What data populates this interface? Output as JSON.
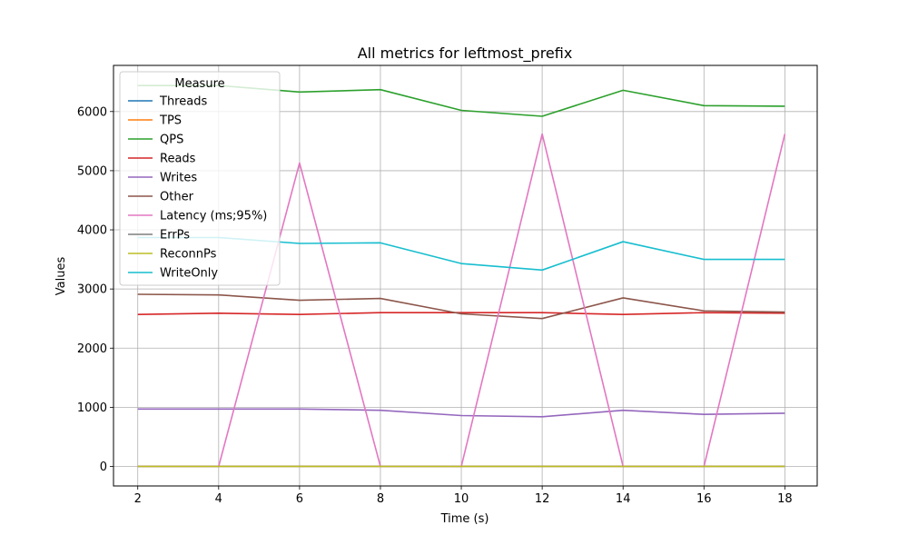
{
  "chart_data": {
    "type": "line",
    "title": "All metrics for leftmost_prefix",
    "xlabel": "Time (s)",
    "ylabel": "Values",
    "x": [
      2,
      4,
      6,
      8,
      10,
      12,
      14,
      16,
      18
    ],
    "xlim": [
      1.4,
      18.8
    ],
    "ylim": [
      -330,
      6780
    ],
    "xticks": [
      2,
      4,
      6,
      8,
      10,
      12,
      14,
      16,
      18
    ],
    "yticks": [
      0,
      1000,
      2000,
      3000,
      4000,
      5000,
      6000
    ],
    "grid": true,
    "legend": {
      "title": "Measure",
      "placement": "upper-left"
    },
    "series": [
      {
        "name": "Threads",
        "color": "#1f77b4",
        "values": [
          4,
          4,
          4,
          4,
          4,
          4,
          4,
          4,
          4
        ]
      },
      {
        "name": "TPS",
        "color": "#ff7f0e",
        "values": [
          2,
          2,
          2,
          2,
          2,
          2,
          2,
          2,
          2
        ]
      },
      {
        "name": "QPS",
        "color": "#2ca02c",
        "values": [
          6440,
          6440,
          6330,
          6370,
          6020,
          5920,
          6360,
          6100,
          6090
        ]
      },
      {
        "name": "Reads",
        "color": "#d62728",
        "values": [
          2570,
          2590,
          2570,
          2600,
          2600,
          2600,
          2570,
          2600,
          2590
        ]
      },
      {
        "name": "Writes",
        "color": "#9467bd",
        "values": [
          970,
          970,
          970,
          950,
          860,
          840,
          950,
          880,
          900
        ]
      },
      {
        "name": "Other",
        "color": "#8c564b",
        "values": [
          2910,
          2900,
          2810,
          2840,
          2580,
          2500,
          2850,
          2630,
          2610
        ]
      },
      {
        "name": "Latency (ms;95%)",
        "color": "#e377c2",
        "values": [
          0,
          0,
          5130,
          0,
          0,
          5620,
          0,
          0,
          5620
        ]
      },
      {
        "name": "ErrPs",
        "color": "#7f7f7f",
        "values": [
          0,
          0,
          0,
          0,
          0,
          0,
          0,
          0,
          0
        ]
      },
      {
        "name": "ReconnPs",
        "color": "#bcbd22",
        "values": [
          0,
          0,
          0,
          0,
          0,
          0,
          0,
          0,
          0
        ]
      },
      {
        "name": "WriteOnly",
        "color": "#17becf",
        "values": [
          3870,
          3870,
          3770,
          3780,
          3430,
          3320,
          3800,
          3500,
          3500
        ]
      }
    ]
  }
}
